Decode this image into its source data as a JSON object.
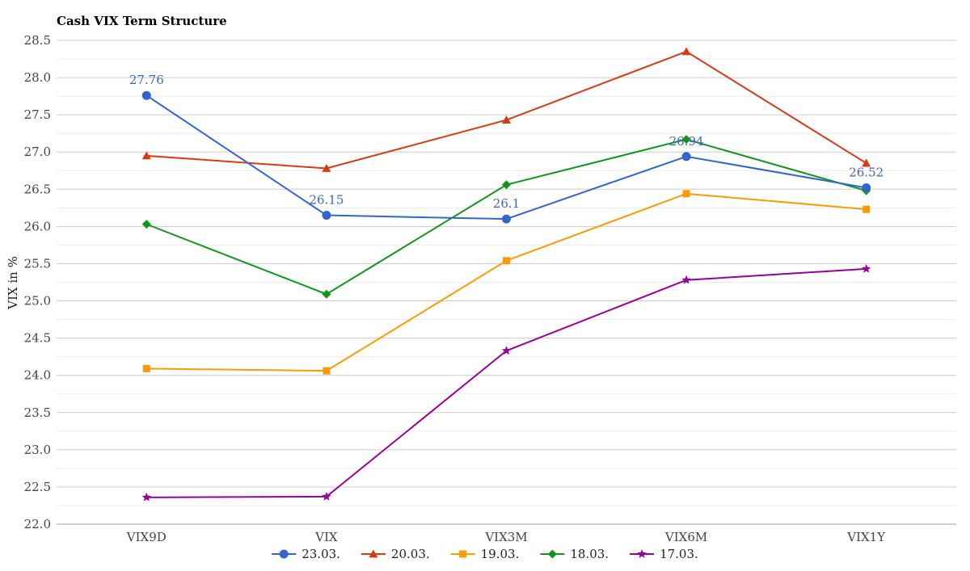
{
  "chart_data": {
    "type": "line",
    "title": "Cash VIX Term Structure",
    "xlabel": "",
    "ylabel": "VIX in %",
    "categories": [
      "VIX9D",
      "VIX",
      "VIX3M",
      "VIX6M",
      "VIX1Y"
    ],
    "ylim": [
      22.0,
      28.5
    ],
    "yticks": [
      "22.0",
      "22.5",
      "23.0",
      "23.5",
      "24.0",
      "24.5",
      "25.0",
      "25.5",
      "26.0",
      "26.5",
      "27.0",
      "27.5",
      "28.0",
      "28.5"
    ],
    "grid": true,
    "legend_position": "bottom",
    "series": [
      {
        "name": "23.03.",
        "color": "#3366cc",
        "marker": "circle",
        "values": [
          27.76,
          26.15,
          26.1,
          26.94,
          26.52
        ],
        "data_labels": [
          "27.76",
          "26.15",
          "26.1",
          "26.94",
          "26.52"
        ]
      },
      {
        "name": "20.03.",
        "color": "#dc3912",
        "marker": "triangle",
        "values": [
          26.95,
          26.78,
          27.43,
          28.35,
          26.85
        ]
      },
      {
        "name": "19.03.",
        "color": "#ff9900",
        "marker": "square",
        "values": [
          24.09,
          24.06,
          25.54,
          26.44,
          26.23
        ]
      },
      {
        "name": "18.03.",
        "color": "#109618",
        "marker": "diamond",
        "values": [
          26.03,
          25.09,
          26.56,
          27.17,
          26.48
        ]
      },
      {
        "name": "17.03.",
        "color": "#990099",
        "marker": "star",
        "values": [
          22.36,
          22.37,
          24.33,
          25.28,
          25.43
        ]
      }
    ]
  }
}
